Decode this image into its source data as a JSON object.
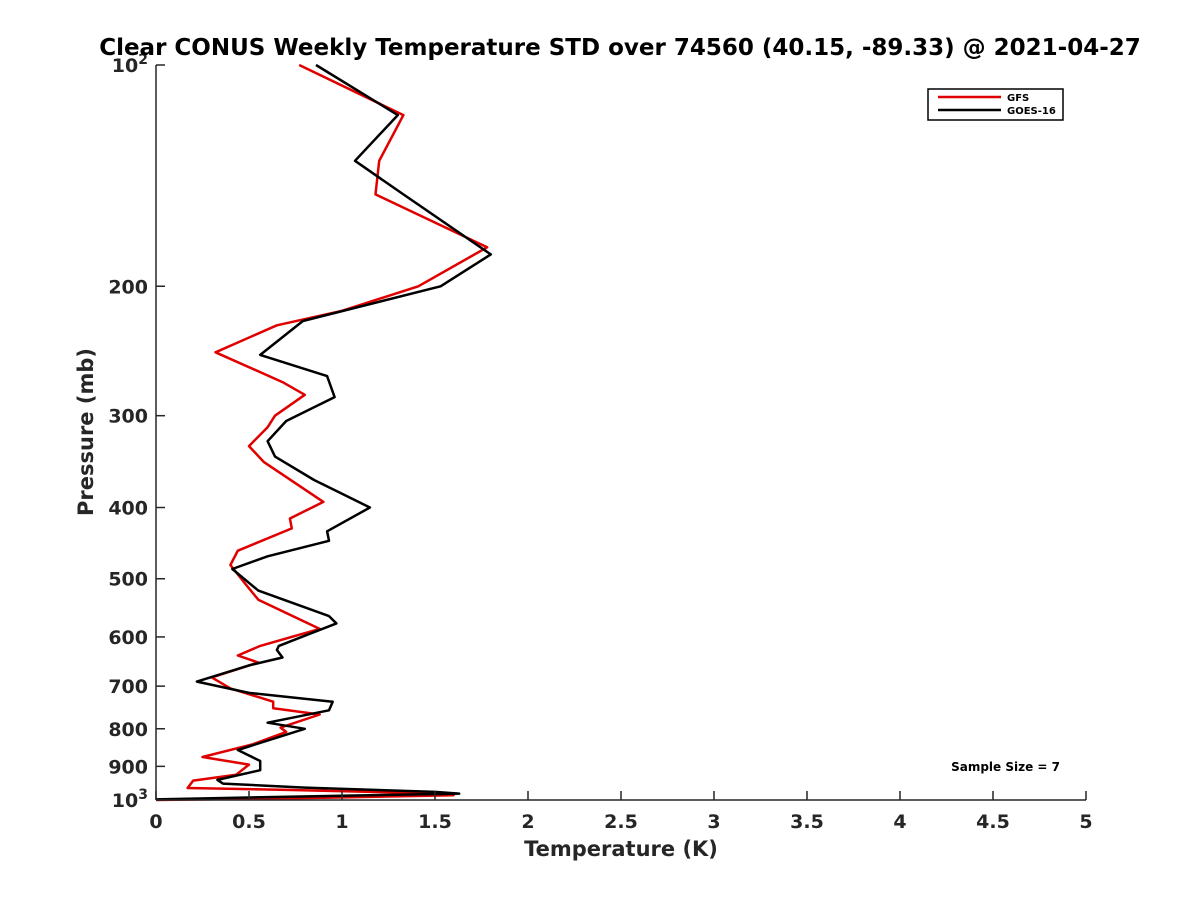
{
  "chart_data": {
    "type": "line",
    "title": "Clear CONUS Weekly Temperature STD over 74560 (40.15, -89.33) @ 2021-04-27",
    "xlabel": "Temperature (K)",
    "ylabel": "Pressure (mb)",
    "xlim": [
      0,
      5
    ],
    "ylim": [
      1000,
      100
    ],
    "yscale": "log",
    "y_reversed": true,
    "x_ticks": [
      "0",
      "0.5",
      "1",
      "1.5",
      "2",
      "2.5",
      "3",
      "3.5",
      "4",
      "4.5",
      "5"
    ],
    "y_ticks": [
      {
        "value": 100,
        "base": "10",
        "exp": "2"
      },
      {
        "value": 200,
        "label": "200"
      },
      {
        "value": 300,
        "label": "300"
      },
      {
        "value": 400,
        "label": "400"
      },
      {
        "value": 500,
        "label": "500"
      },
      {
        "value": 600,
        "label": "600"
      },
      {
        "value": 700,
        "label": "700"
      },
      {
        "value": 800,
        "label": "800"
      },
      {
        "value": 900,
        "label": "900"
      },
      {
        "value": 1000,
        "base": "10",
        "exp": "3"
      }
    ],
    "legend_position": "top-right",
    "annotation": "Sample Size = 7",
    "series": [
      {
        "name": "GFS",
        "color": "#e00000",
        "points": [
          [
            0.77,
            100
          ],
          [
            1.33,
            117
          ],
          [
            1.2,
            135
          ],
          [
            1.18,
            150
          ],
          [
            1.78,
            177
          ],
          [
            1.41,
            200
          ],
          [
            1.0,
            216
          ],
          [
            0.65,
            226
          ],
          [
            0.32,
            246
          ],
          [
            0.68,
            270
          ],
          [
            0.8,
            281
          ],
          [
            0.64,
            300
          ],
          [
            0.6,
            311
          ],
          [
            0.5,
            330
          ],
          [
            0.58,
            347
          ],
          [
            0.9,
            393
          ],
          [
            0.72,
            414
          ],
          [
            0.73,
            427
          ],
          [
            0.44,
            458
          ],
          [
            0.4,
            479
          ],
          [
            0.48,
            508
          ],
          [
            0.55,
            534
          ],
          [
            0.88,
            585
          ],
          [
            0.56,
            617
          ],
          [
            0.44,
            636
          ],
          [
            0.55,
            650
          ],
          [
            0.3,
            681
          ],
          [
            0.4,
            705
          ],
          [
            0.63,
            735
          ],
          [
            0.63,
            750
          ],
          [
            0.88,
            765
          ],
          [
            0.67,
            797
          ],
          [
            0.7,
            808
          ],
          [
            0.52,
            840
          ],
          [
            0.25,
            874
          ],
          [
            0.5,
            895
          ],
          [
            0.43,
            924
          ],
          [
            0.2,
            941
          ],
          [
            0.17,
            963
          ],
          [
            0.7,
            969
          ],
          [
            1.4,
            978
          ],
          [
            1.6,
            985
          ],
          [
            0.8,
            994
          ],
          [
            0.0,
            1000
          ]
        ]
      },
      {
        "name": "GOES-16",
        "color": "#000000",
        "points": [
          [
            0.86,
            100
          ],
          [
            1.3,
            117
          ],
          [
            1.07,
            135
          ],
          [
            1.33,
            150
          ],
          [
            1.8,
            181
          ],
          [
            1.53,
            200
          ],
          [
            0.79,
            223
          ],
          [
            0.56,
            248
          ],
          [
            0.92,
            265
          ],
          [
            0.96,
            283
          ],
          [
            0.7,
            305
          ],
          [
            0.6,
            325
          ],
          [
            0.64,
            341
          ],
          [
            0.85,
            367
          ],
          [
            1.15,
            400
          ],
          [
            0.92,
            431
          ],
          [
            0.93,
            444
          ],
          [
            0.6,
            466
          ],
          [
            0.41,
            485
          ],
          [
            0.55,
            519
          ],
          [
            0.93,
            562
          ],
          [
            0.97,
            575
          ],
          [
            0.66,
            617
          ],
          [
            0.65,
            625
          ],
          [
            0.68,
            640
          ],
          [
            0.5,
            656
          ],
          [
            0.22,
            690
          ],
          [
            0.5,
            715
          ],
          [
            0.95,
            735
          ],
          [
            0.93,
            755
          ],
          [
            0.6,
            785
          ],
          [
            0.8,
            800
          ],
          [
            0.44,
            855
          ],
          [
            0.56,
            885
          ],
          [
            0.56,
            911
          ],
          [
            0.33,
            939
          ],
          [
            0.36,
            950
          ],
          [
            0.8,
            962
          ],
          [
            1.5,
            975
          ],
          [
            1.63,
            980
          ],
          [
            0.6,
            991
          ],
          [
            0.0,
            998
          ]
        ]
      }
    ]
  }
}
